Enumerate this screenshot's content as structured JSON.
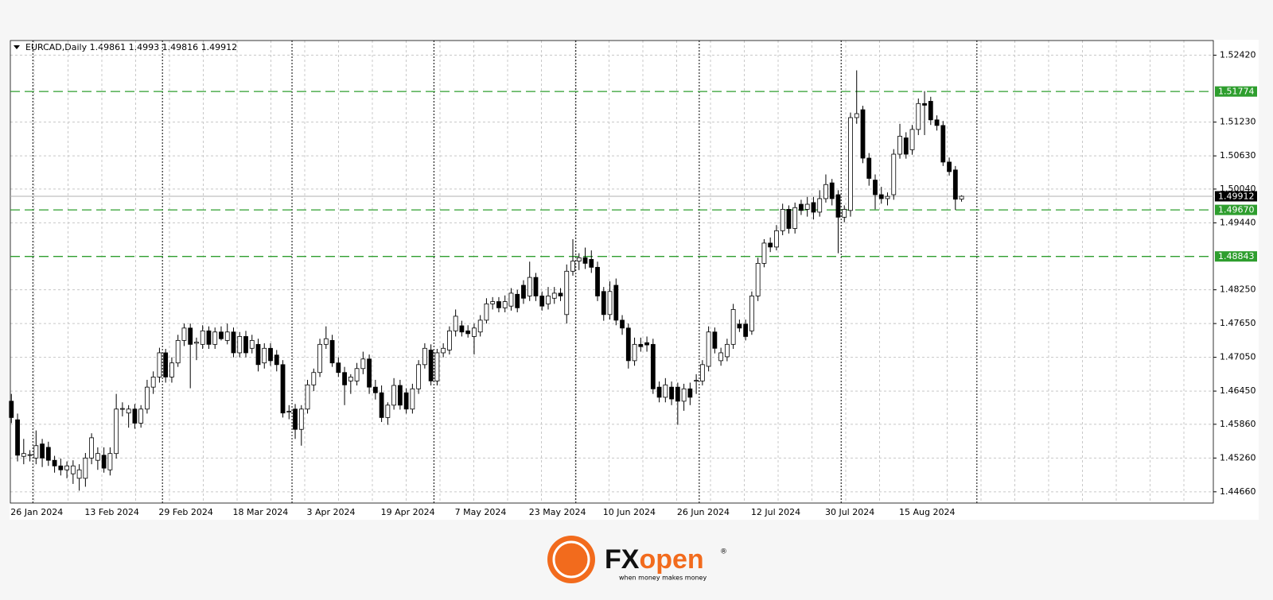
{
  "chart_data": {
    "type": "candlestick",
    "symbol": "EURCAD,Daily",
    "header_ohlc": [
      1.49861,
      1.4993,
      1.49816,
      1.49912
    ],
    "x": [
      "26 Jan 2024",
      null,
      null,
      null,
      null,
      null,
      null,
      null,
      null,
      null,
      null,
      null,
      "13 Feb 2024",
      null,
      null,
      null,
      null,
      null,
      null,
      null,
      null,
      null,
      null,
      null,
      "29 Feb 2024",
      null,
      null,
      null,
      null,
      null,
      null,
      null,
      null,
      null,
      null,
      null,
      "18 Mar 2024",
      null,
      null,
      null,
      null,
      null,
      null,
      null,
      null,
      null,
      null,
      null,
      "3 Apr 2024",
      null,
      null,
      null,
      null,
      null,
      null,
      null,
      null,
      null,
      null,
      null,
      "19 Apr 2024",
      null,
      null,
      null,
      null,
      null,
      null,
      null,
      null,
      null,
      null,
      null,
      "7 May 2024",
      null,
      null,
      null,
      null,
      null,
      null,
      null,
      null,
      null,
      null,
      null,
      "23 May 2024",
      null,
      null,
      null,
      null,
      null,
      null,
      null,
      null,
      null,
      null,
      null,
      "10 Jun 2024",
      null,
      null,
      null,
      null,
      null,
      null,
      null,
      null,
      null,
      null,
      null,
      "26 Jun 2024",
      null,
      null,
      null,
      null,
      null,
      null,
      null,
      null,
      null,
      null,
      null,
      "12 Jul 2024",
      null,
      null,
      null,
      null,
      null,
      null,
      null,
      null,
      null,
      null,
      null,
      "30 Jul 2024",
      null,
      null,
      null,
      null,
      null,
      null,
      null,
      null,
      null,
      null,
      null,
      "15 Aug 2024",
      null,
      null,
      null,
      null,
      null,
      null,
      null,
      null,
      null,
      null
    ],
    "ohlc": [
      [
        1.4627,
        1.464,
        1.4588,
        1.4598
      ],
      [
        1.4594,
        1.4605,
        1.452,
        1.4531
      ],
      [
        1.4529,
        1.456,
        1.4515,
        1.4534
      ],
      [
        1.4531,
        1.454,
        1.452,
        1.4532
      ],
      [
        1.4526,
        1.4575,
        1.4515,
        1.4548
      ],
      [
        1.4551,
        1.456,
        1.451,
        1.4526
      ],
      [
        1.4545,
        1.4555,
        1.4512,
        1.4522
      ],
      [
        1.4522,
        1.453,
        1.45,
        1.4512
      ],
      [
        1.4512,
        1.4525,
        1.4495,
        1.4505
      ],
      [
        1.4505,
        1.452,
        1.449,
        1.4512
      ],
      [
        1.4498,
        1.4522,
        1.448,
        1.4512
      ],
      [
        1.449,
        1.4515,
        1.4468,
        1.4505
      ],
      [
        1.449,
        1.4535,
        1.4475,
        1.4526
      ],
      [
        1.4526,
        1.457,
        1.4515,
        1.4562
      ],
      [
        1.4522,
        1.4545,
        1.4505,
        1.4534
      ],
      [
        1.4531,
        1.4545,
        1.45,
        1.4508
      ],
      [
        1.4505,
        1.4545,
        1.4495,
        1.4534
      ],
      [
        1.4534,
        1.464,
        1.4525,
        1.4613
      ],
      [
        1.4613,
        1.4625,
        1.46,
        1.4614
      ],
      [
        1.4606,
        1.462,
        1.458,
        1.4613
      ],
      [
        1.4613,
        1.4622,
        1.4578,
        1.4588
      ],
      [
        1.4588,
        1.462,
        1.458,
        1.4613
      ],
      [
        1.4613,
        1.4665,
        1.4605,
        1.4652
      ],
      [
        1.4652,
        1.468,
        1.464,
        1.467
      ],
      [
        1.467,
        1.4722,
        1.466,
        1.4713
      ],
      [
        1.4713,
        1.472,
        1.466,
        1.467
      ],
      [
        1.467,
        1.4705,
        1.466,
        1.4695
      ],
      [
        1.4695,
        1.4745,
        1.4688,
        1.4735
      ],
      [
        1.4735,
        1.4765,
        1.4725,
        1.4757
      ],
      [
        1.4757,
        1.4765,
        1.465,
        1.4728
      ],
      [
        1.473,
        1.474,
        1.47,
        1.4732
      ],
      [
        1.4728,
        1.4762,
        1.472,
        1.4752
      ],
      [
        1.4752,
        1.476,
        1.472,
        1.4728
      ],
      [
        1.4728,
        1.4758,
        1.472,
        1.475
      ],
      [
        1.475,
        1.476,
        1.4735,
        1.4738
      ],
      [
        1.4735,
        1.4765,
        1.4728,
        1.475
      ],
      [
        1.475,
        1.4758,
        1.4705,
        1.4713
      ],
      [
        1.4713,
        1.475,
        1.4705,
        1.4742
      ],
      [
        1.4742,
        1.4752,
        1.4705,
        1.4713
      ],
      [
        1.4721,
        1.4745,
        1.4712,
        1.4735
      ],
      [
        1.4728,
        1.4738,
        1.468,
        1.4692
      ],
      [
        1.4695,
        1.473,
        1.4685,
        1.4721
      ],
      [
        1.4721,
        1.473,
        1.469,
        1.4699
      ],
      [
        1.4709,
        1.4718,
        1.468,
        1.4692
      ],
      [
        1.4692,
        1.47,
        1.4598,
        1.4606
      ],
      [
        1.4608,
        1.462,
        1.4595,
        1.4609
      ],
      [
        1.4613,
        1.4622,
        1.456,
        1.4577
      ],
      [
        1.4577,
        1.462,
        1.4548,
        1.4613
      ],
      [
        1.4613,
        1.4665,
        1.4605,
        1.4656
      ],
      [
        1.4656,
        1.4685,
        1.4645,
        1.4678
      ],
      [
        1.4678,
        1.4738,
        1.467,
        1.4728
      ],
      [
        1.4728,
        1.476,
        1.472,
        1.4738
      ],
      [
        1.4735,
        1.4745,
        1.4688,
        1.4695
      ],
      [
        1.4695,
        1.4705,
        1.467,
        1.4678
      ],
      [
        1.4678,
        1.4688,
        1.462,
        1.4656
      ],
      [
        1.4663,
        1.4675,
        1.464,
        1.467
      ],
      [
        1.4663,
        1.4695,
        1.4655,
        1.4685
      ],
      [
        1.4685,
        1.4715,
        1.4675,
        1.4702
      ],
      [
        1.4702,
        1.471,
        1.464,
        1.4652
      ],
      [
        1.4652,
        1.4665,
        1.463,
        1.4642
      ],
      [
        1.4642,
        1.4655,
        1.459,
        1.4598
      ],
      [
        1.4598,
        1.4625,
        1.4585,
        1.462
      ],
      [
        1.462,
        1.4668,
        1.4612,
        1.4655
      ],
      [
        1.4655,
        1.4665,
        1.4612,
        1.462
      ],
      [
        1.4642,
        1.465,
        1.4605,
        1.4613
      ],
      [
        1.4613,
        1.4658,
        1.4605,
        1.4649
      ],
      [
        1.4649,
        1.47,
        1.464,
        1.4692
      ],
      [
        1.4692,
        1.473,
        1.4685,
        1.4721
      ],
      [
        1.4718,
        1.4728,
        1.4655,
        1.4663
      ],
      [
        1.4663,
        1.472,
        1.4655,
        1.4713
      ],
      [
        1.4713,
        1.473,
        1.4705,
        1.4721
      ],
      [
        1.4718,
        1.476,
        1.471,
        1.4752
      ],
      [
        1.4752,
        1.479,
        1.4742,
        1.4778
      ],
      [
        1.4761,
        1.477,
        1.4742,
        1.475
      ],
      [
        1.4752,
        1.4762,
        1.474,
        1.4747
      ],
      [
        1.4742,
        1.4765,
        1.471,
        1.4757
      ],
      [
        1.475,
        1.478,
        1.4742,
        1.4771
      ],
      [
        1.4771,
        1.481,
        1.4765,
        1.48
      ],
      [
        1.48,
        1.4812,
        1.479,
        1.4804
      ],
      [
        1.4804,
        1.4812,
        1.4785,
        1.4793
      ],
      [
        1.4793,
        1.4815,
        1.4785,
        1.4804
      ],
      [
        1.4796,
        1.4828,
        1.4788,
        1.4819
      ],
      [
        1.4817,
        1.4825,
        1.4785,
        1.4793
      ],
      [
        1.4833,
        1.4842,
        1.48,
        1.481
      ],
      [
        1.4814,
        1.4875,
        1.4805,
        1.4847
      ],
      [
        1.4847,
        1.4855,
        1.4805,
        1.4814
      ],
      [
        1.4814,
        1.4822,
        1.4788,
        1.4796
      ],
      [
        1.48,
        1.483,
        1.479,
        1.4814
      ],
      [
        1.481,
        1.483,
        1.48,
        1.4819
      ],
      [
        1.4819,
        1.4828,
        1.4805,
        1.4814
      ],
      [
        1.4781,
        1.487,
        1.4765,
        1.4858
      ],
      [
        1.4858,
        1.4915,
        1.485,
        1.4876
      ],
      [
        1.4876,
        1.489,
        1.486,
        1.4882
      ],
      [
        1.4882,
        1.49,
        1.4862,
        1.4872
      ],
      [
        1.4879,
        1.4895,
        1.4855,
        1.4865
      ],
      [
        1.4865,
        1.4875,
        1.4805,
        1.4814
      ],
      [
        1.4822,
        1.483,
        1.477,
        1.4781
      ],
      [
        1.4781,
        1.484,
        1.4772,
        1.4822
      ],
      [
        1.4833,
        1.4845,
        1.4762,
        1.4771
      ],
      [
        1.4771,
        1.478,
        1.4745,
        1.4757
      ],
      [
        1.4757,
        1.4765,
        1.4685,
        1.4699
      ],
      [
        1.4699,
        1.474,
        1.469,
        1.4728
      ],
      [
        1.4728,
        1.474,
        1.4715,
        1.4724
      ],
      [
        1.4731,
        1.4742,
        1.4715,
        1.4727
      ],
      [
        1.4728,
        1.4738,
        1.464,
        1.4649
      ],
      [
        1.4652,
        1.4662,
        1.4625,
        1.4634
      ],
      [
        1.4634,
        1.4668,
        1.4625,
        1.4656
      ],
      [
        1.4652,
        1.4662,
        1.462,
        1.4631
      ],
      [
        1.4652,
        1.466,
        1.4585,
        1.4627
      ],
      [
        1.4627,
        1.4658,
        1.461,
        1.4649
      ],
      [
        1.4649,
        1.466,
        1.462,
        1.4634
      ],
      [
        1.4663,
        1.4675,
        1.464,
        1.4664
      ],
      [
        1.4663,
        1.47,
        1.4655,
        1.4692
      ],
      [
        1.4689,
        1.476,
        1.468,
        1.475
      ],
      [
        1.475,
        1.4758,
        1.4712,
        1.4721
      ],
      [
        1.4699,
        1.4722,
        1.469,
        1.4713
      ],
      [
        1.4706,
        1.4738,
        1.4698,
        1.4728
      ],
      [
        1.4728,
        1.48,
        1.472,
        1.479
      ],
      [
        1.4764,
        1.4772,
        1.475,
        1.4757
      ],
      [
        1.4764,
        1.4772,
        1.4735,
        1.4742
      ],
      [
        1.4752,
        1.4822,
        1.4745,
        1.4814
      ],
      [
        1.4814,
        1.4882,
        1.4805,
        1.4872
      ],
      [
        1.4872,
        1.4915,
        1.4865,
        1.4908
      ],
      [
        1.4908,
        1.4918,
        1.4892,
        1.4901
      ],
      [
        1.4901,
        1.494,
        1.4895,
        1.493
      ],
      [
        1.493,
        1.4978,
        1.4922,
        1.4968
      ],
      [
        1.4968,
        1.4975,
        1.4925,
        1.4934
      ],
      [
        1.4934,
        1.498,
        1.4925,
        1.4971
      ],
      [
        1.4977,
        1.4985,
        1.4958,
        1.4966
      ],
      [
        1.4968,
        1.499,
        1.4955,
        1.4977
      ],
      [
        1.498,
        1.499,
        1.495,
        1.4963
      ],
      [
        1.4963,
        1.5002,
        1.4955,
        1.4987
      ],
      [
        1.4987,
        1.503,
        1.498,
        1.5012
      ],
      [
        1.5015,
        1.5022,
        1.4975,
        1.4987
      ],
      [
        1.4994,
        1.5002,
        1.489,
        1.4954
      ],
      [
        1.4954,
        1.4975,
        1.4945,
        1.4968
      ],
      [
        1.4966,
        1.514,
        1.4955,
        1.5131
      ],
      [
        1.5131,
        1.5215,
        1.512,
        1.5138
      ],
      [
        1.5145,
        1.5152,
        1.505,
        1.5059
      ],
      [
        1.5059,
        1.5068,
        1.501,
        1.5023
      ],
      [
        1.502,
        1.503,
        1.4968,
        1.4994
      ],
      [
        1.4994,
        1.5008,
        1.4978,
        1.4987
      ],
      [
        1.4987,
        1.4998,
        1.4975,
        1.4991
      ],
      [
        1.4994,
        1.5075,
        1.4985,
        1.5066
      ],
      [
        1.5066,
        1.512,
        1.5058,
        1.5098
      ],
      [
        1.5095,
        1.5105,
        1.5058,
        1.5066
      ],
      [
        1.5074,
        1.5118,
        1.5065,
        1.511
      ],
      [
        1.511,
        1.5165,
        1.51,
        1.5156
      ],
      [
        1.5156,
        1.5178,
        1.51,
        1.5153
      ],
      [
        1.516,
        1.5168,
        1.5118,
        1.5127
      ],
      [
        1.5127,
        1.5135,
        1.5108,
        1.5117
      ],
      [
        1.5117,
        1.5125,
        1.5045,
        1.5052
      ],
      [
        1.5052,
        1.506,
        1.5028,
        1.5035
      ],
      [
        1.5038,
        1.5045,
        1.4967,
        1.4986
      ],
      [
        1.49861,
        1.4993,
        1.49816,
        1.49912
      ]
    ],
    "up_color": "#ffffff",
    "down_color": "#000000",
    "ylim": [
      1.4446,
      1.5268
    ],
    "yticks": [
      {
        "value": 1.4466,
        "label": "1.44660"
      },
      {
        "value": 1.4526,
        "label": "1.45260"
      },
      {
        "value": 1.4586,
        "label": "1.45860"
      },
      {
        "value": 1.4645,
        "label": "1.46450"
      },
      {
        "value": 1.4705,
        "label": "1.47050"
      },
      {
        "value": 1.4765,
        "label": "1.47650"
      },
      {
        "value": 1.4825,
        "label": "1.48250"
      },
      {
        "value": 1.4944,
        "label": "1.49440"
      },
      {
        "value": 1.5004,
        "label": "1.50040"
      },
      {
        "value": 1.5063,
        "label": "1.50630"
      },
      {
        "value": 1.5123,
        "label": "1.51230"
      },
      {
        "value": 1.5242,
        "label": "1.52420"
      }
    ],
    "grid": true,
    "levels": [
      1.51774,
      {
        "value": 1.4967,
        "label": "1.49670"
      },
      1.48843
    ],
    "level_color": "#2e9e2e",
    "last_price": 1.49912,
    "logo": {
      "fx": "FX",
      "open": "open",
      "mark": "®",
      "tagline": "when money makes money"
    }
  }
}
